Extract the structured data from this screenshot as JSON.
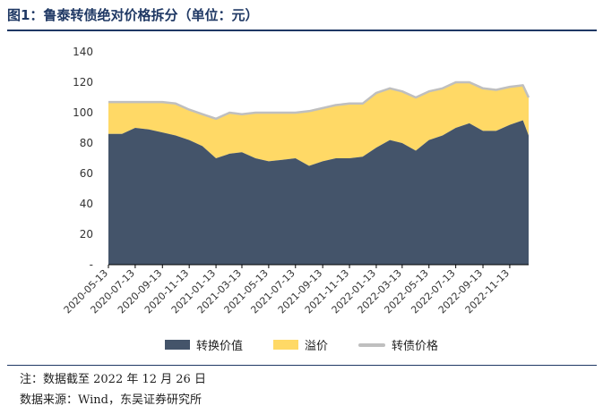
{
  "header": {
    "title": "图1：鲁泰转债绝对价格拆分（单位：元）"
  },
  "chart_data": {
    "type": "area",
    "ylim": [
      0,
      140
    ],
    "yticks": [
      "-",
      "20",
      "40",
      "60",
      "80",
      "100",
      "120",
      "140"
    ],
    "x": [
      "2020-05-13",
      "2020-06-13",
      "2020-07-13",
      "2020-08-13",
      "2020-09-13",
      "2020-10-13",
      "2020-11-13",
      "2020-12-13",
      "2021-01-13",
      "2021-02-13",
      "2021-03-13",
      "2021-04-13",
      "2021-05-13",
      "2021-06-13",
      "2021-07-13",
      "2021-08-13",
      "2021-09-13",
      "2021-10-13",
      "2021-11-13",
      "2021-12-13",
      "2022-01-13",
      "2022-02-13",
      "2022-03-13",
      "2022-04-13",
      "2022-05-13",
      "2022-06-13",
      "2022-07-13",
      "2022-08-13",
      "2022-09-13",
      "2022-10-13",
      "2022-11-13",
      "2022-12-13",
      "2022-12-26"
    ],
    "xtick_labels": [
      "2020-05-13",
      "2020-07-13",
      "2020-09-13",
      "2020-11-13",
      "2021-01-13",
      "2021-03-13",
      "2021-05-13",
      "2021-07-13",
      "2021-09-13",
      "2021-11-13",
      "2022-01-13",
      "2022-03-13",
      "2022-05-13",
      "2022-07-13",
      "2022-09-13",
      "2022-11-13"
    ],
    "series": [
      {
        "name": "转换价值",
        "kind": "area",
        "color": "#44546a",
        "values": [
          86,
          86,
          90,
          89,
          87,
          85,
          82,
          78,
          70,
          73,
          74,
          70,
          68,
          69,
          70,
          65,
          68,
          70,
          70,
          71,
          77,
          82,
          80,
          75,
          82,
          85,
          90,
          93,
          88,
          88,
          92,
          95,
          85
        ]
      },
      {
        "name": "溢价",
        "kind": "area-stacked",
        "color": "#ffd966",
        "values": [
          21,
          21,
          17,
          18,
          20,
          21,
          20,
          21,
          26,
          27,
          25,
          30,
          32,
          31,
          30,
          36,
          35,
          35,
          36,
          35,
          36,
          34,
          34,
          35,
          32,
          31,
          30,
          27,
          28,
          27,
          25,
          23,
          25
        ]
      },
      {
        "name": "转债价格",
        "kind": "line",
        "color": "#bfbfbf",
        "values": [
          107,
          107,
          107,
          107,
          107,
          106,
          102,
          99,
          96,
          100,
          99,
          100,
          100,
          100,
          100,
          101,
          103,
          105,
          106,
          106,
          113,
          116,
          114,
          110,
          114,
          116,
          120,
          120,
          116,
          115,
          117,
          118,
          110
        ]
      }
    ],
    "grid": false,
    "legend_position": "bottom"
  },
  "notes": {
    "line1": "注：数据截至 2022 年 12 月 26 日",
    "line2": "数据来源：Wind，东吴证券研究所"
  }
}
